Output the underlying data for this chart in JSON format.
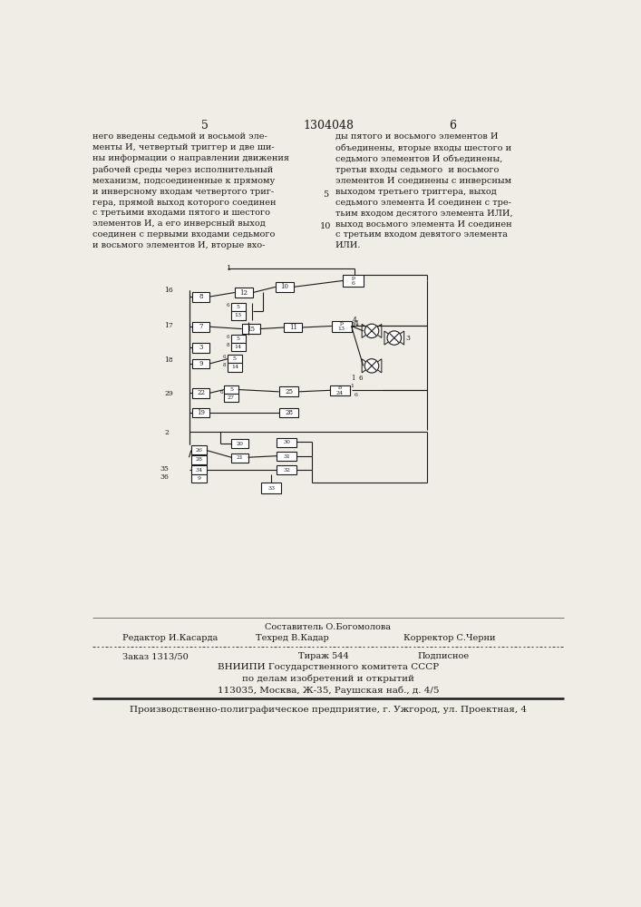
{
  "page_number_left": "5",
  "patent_number": "1304048",
  "page_number_right": "6",
  "text_left": "него введены седьмой и восьмой эле-\nменты И, четвертый триггер и две ши-\nны информации о направлении движения\nрабочей среды через исполнительный\nмеханизм, подсоединенные к прямому\nи инверсному входам четвертого триг-\nгера, прямой выход которого соединен\nс третьими входами пятого и шестого\nэлементов И, а его инверсный выход\nсоединен с первыми входами седьмого\nи восьмого элементов И, вторые вхо-",
  "line_number_5": "5",
  "line_number_10": "10",
  "text_right": "ды пятого и восьмого элементов И\nобъединены, вторые входы шестого и\nседьмого элементов И объединены,\nтретьи входы седьмого  и восьмого\nэлементов И соединены с инверсным\nвыходом третьего триггера, выход\nседьмого элемента И соединен с тре-\nтьим входом десятого элемента ИЛИ,\nвыход восьмого элемента И соединен\nс третьим входом девятого элемента\nИЛИ.",
  "footer_composer": "Составитель О.Богомолова",
  "footer_editor": "Редактор И.Касарда",
  "footer_tech": "Техред В.Кадар",
  "footer_corrector": "Корректор С.Черни",
  "footer_order": "Заказ 1313/50",
  "footer_print": "Тираж 544",
  "footer_sub": "Подписное",
  "footer_org1": "ВНИИПИ Государственного комитета СССР",
  "footer_org2": "по делам изобретений и открытий",
  "footer_org3": "113035, Москва, Ж-35, Раушская наб., д. 4/5",
  "footer_prod": "Производственно-полиграфическое предприятие, г. Ужгород, ул. Проектная, 4",
  "bg_color": "#f0ede6",
  "text_color": "#1a1a1a",
  "diagram_color": "#1a1a1a"
}
